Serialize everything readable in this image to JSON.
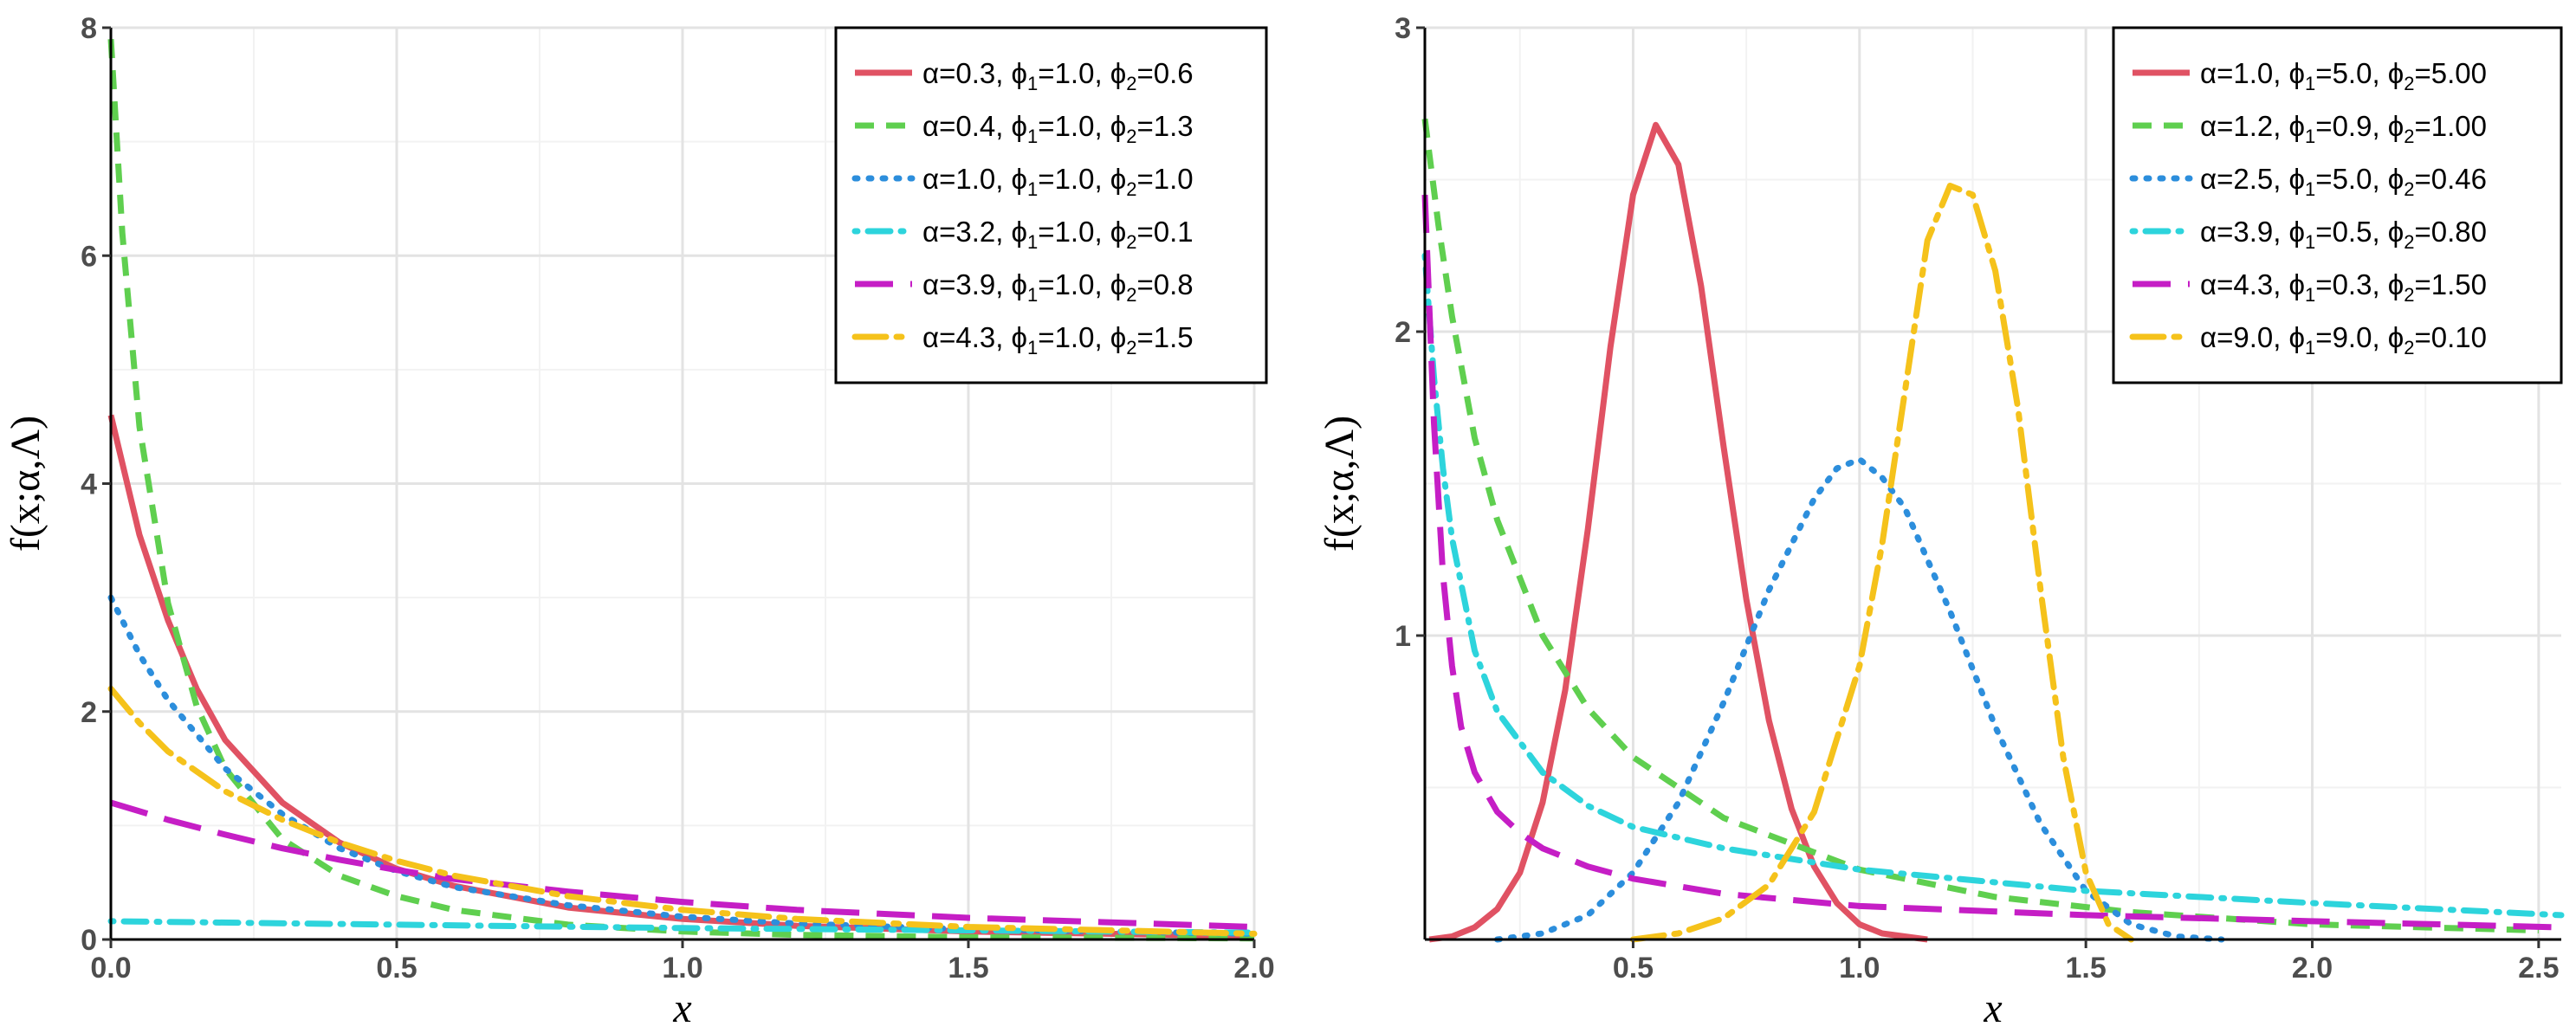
{
  "chart_data": [
    {
      "type": "line",
      "xlabel": "x",
      "ylabel": "f(x;α,Λ)",
      "xlim": [
        0,
        2.0
      ],
      "ylim": [
        0,
        8
      ],
      "xticks": [
        0.0,
        0.5,
        1.0,
        1.5,
        2.0
      ],
      "xtick_labels": [
        "0.0",
        "0.5",
        "1.0",
        "1.5",
        "2.0"
      ],
      "yticks": [
        0,
        2,
        4,
        6,
        8
      ],
      "ytick_labels": [
        "0",
        "2",
        "4",
        "6",
        "8"
      ],
      "grid": true,
      "legend_position": "top-right",
      "series": [
        {
          "name": "α=0.3, ϕ1=1.0, ϕ2=0.6",
          "alpha": "0.3",
          "phi1": "1.0",
          "phi2": "0.6",
          "color": "#E05263",
          "dash": "solid",
          "x": [
            0.0,
            0.05,
            0.1,
            0.15,
            0.2,
            0.3,
            0.4,
            0.5,
            0.6,
            0.8,
            1.0,
            1.2,
            1.5,
            2.0
          ],
          "y": [
            4.6,
            3.55,
            2.8,
            2.2,
            1.75,
            1.2,
            0.85,
            0.62,
            0.47,
            0.28,
            0.18,
            0.12,
            0.07,
            0.03
          ]
        },
        {
          "name": "α=0.4, ϕ1=1.0, ϕ2=1.3",
          "alpha": "0.4",
          "phi1": "1.0",
          "phi2": "1.3",
          "color": "#5FCF4F",
          "dash": "dashed",
          "x": [
            0.0,
            0.02,
            0.05,
            0.1,
            0.15,
            0.2,
            0.3,
            0.4,
            0.5,
            0.6,
            0.8,
            1.0,
            1.2,
            1.5,
            2.0
          ],
          "y": [
            7.9,
            6.2,
            4.5,
            2.95,
            2.05,
            1.5,
            0.88,
            0.56,
            0.38,
            0.26,
            0.13,
            0.07,
            0.04,
            0.02,
            0.01
          ]
        },
        {
          "name": "α=1.0, ϕ1=1.0, ϕ2=1.0",
          "alpha": "1.0",
          "phi1": "1.0",
          "phi2": "1.0",
          "color": "#2C8EDC",
          "dash": "dotted",
          "x": [
            0.0,
            0.05,
            0.1,
            0.2,
            0.3,
            0.4,
            0.5,
            0.6,
            0.8,
            1.0,
            1.2,
            1.5,
            2.0
          ],
          "y": [
            3.0,
            2.5,
            2.1,
            1.5,
            1.1,
            0.8,
            0.6,
            0.46,
            0.3,
            0.2,
            0.14,
            0.09,
            0.05
          ]
        },
        {
          "name": "α=3.2, ϕ1=1.0, ϕ2=0.1",
          "alpha": "3.2",
          "phi1": "1.0",
          "phi2": "0.1",
          "color": "#2DD4DC",
          "dash": "dashdot",
          "x": [
            0.0,
            0.5,
            1.0,
            1.5,
            2.0
          ],
          "y": [
            0.16,
            0.13,
            0.1,
            0.08,
            0.06
          ]
        },
        {
          "name": "α=3.9, ϕ1=1.0, ϕ2=0.8",
          "alpha": "3.9",
          "phi1": "1.0",
          "phi2": "0.8",
          "color": "#C51EC5",
          "dash": "longdash",
          "x": [
            0.0,
            0.1,
            0.2,
            0.3,
            0.4,
            0.5,
            0.6,
            0.8,
            1.0,
            1.2,
            1.5,
            2.0
          ],
          "y": [
            1.2,
            1.05,
            0.92,
            0.8,
            0.7,
            0.61,
            0.53,
            0.42,
            0.33,
            0.26,
            0.19,
            0.11
          ]
        },
        {
          "name": "α=4.3, ϕ1=1.0, ϕ2=1.5",
          "alpha": "4.3",
          "phi1": "1.0",
          "phi2": "1.5",
          "color": "#F5C21B",
          "dash": "twodash",
          "x": [
            0.0,
            0.05,
            0.1,
            0.2,
            0.3,
            0.4,
            0.5,
            0.6,
            0.8,
            1.0,
            1.2,
            1.5,
            2.0
          ],
          "y": [
            2.2,
            1.9,
            1.65,
            1.3,
            1.05,
            0.85,
            0.69,
            0.56,
            0.38,
            0.26,
            0.18,
            0.11,
            0.05
          ]
        }
      ]
    },
    {
      "type": "line",
      "xlabel": "x",
      "ylabel": "f(x;α,Λ)",
      "xlim": [
        0.04,
        2.55
      ],
      "ylim": [
        0,
        3
      ],
      "xticks": [
        0.5,
        1.0,
        1.5,
        2.0,
        2.5
      ],
      "xtick_labels": [
        "0.5",
        "1.0",
        "1.5",
        "2.0",
        "2.5"
      ],
      "yticks": [
        1,
        2,
        3
      ],
      "ytick_labels": [
        "1",
        "2",
        "3"
      ],
      "grid": true,
      "legend_position": "top-right",
      "series": [
        {
          "name": "α=1.0, ϕ1=5.0, ϕ2=5.00",
          "alpha": "1.0",
          "phi1": "5.0",
          "phi2": "5.00",
          "color": "#E05263",
          "dash": "solid",
          "x": [
            0.05,
            0.1,
            0.15,
            0.2,
            0.25,
            0.3,
            0.35,
            0.4,
            0.45,
            0.5,
            0.55,
            0.6,
            0.65,
            0.7,
            0.75,
            0.8,
            0.85,
            0.9,
            0.95,
            1.0,
            1.05,
            1.1,
            1.15
          ],
          "y": [
            0.0,
            0.01,
            0.04,
            0.1,
            0.22,
            0.45,
            0.82,
            1.35,
            1.95,
            2.45,
            2.68,
            2.55,
            2.15,
            1.62,
            1.12,
            0.72,
            0.43,
            0.24,
            0.12,
            0.05,
            0.02,
            0.01,
            0.0
          ]
        },
        {
          "name": "α=1.2, ϕ1=0.9, ϕ2=1.00",
          "alpha": "1.2",
          "phi1": "0.9",
          "phi2": "1.00",
          "color": "#5FCF4F",
          "dash": "dashed",
          "x": [
            0.04,
            0.07,
            0.1,
            0.15,
            0.2,
            0.3,
            0.4,
            0.5,
            0.7,
            1.0,
            1.3,
            1.6,
            2.0,
            2.5
          ],
          "y": [
            2.7,
            2.35,
            2.05,
            1.65,
            1.38,
            1.0,
            0.76,
            0.6,
            0.4,
            0.23,
            0.14,
            0.09,
            0.05,
            0.03
          ]
        },
        {
          "name": "α=2.5, ϕ1=5.0, ϕ2=0.46",
          "alpha": "2.5",
          "phi1": "5.0",
          "phi2": "0.46",
          "color": "#2C8EDC",
          "dash": "dotted",
          "x": [
            0.2,
            0.3,
            0.4,
            0.5,
            0.6,
            0.7,
            0.8,
            0.9,
            0.95,
            1.0,
            1.05,
            1.1,
            1.2,
            1.3,
            1.4,
            1.5,
            1.6,
            1.7,
            1.8
          ],
          "y": [
            0.0,
            0.02,
            0.08,
            0.22,
            0.45,
            0.78,
            1.15,
            1.45,
            1.55,
            1.58,
            1.52,
            1.42,
            1.08,
            0.7,
            0.38,
            0.16,
            0.05,
            0.01,
            0.0
          ]
        },
        {
          "name": "α=3.9, ϕ1=0.5, ϕ2=0.80",
          "alpha": "3.9",
          "phi1": "0.5",
          "phi2": "0.80",
          "color": "#2DD4DC",
          "dash": "dashdot",
          "x": [
            0.04,
            0.06,
            0.08,
            0.1,
            0.15,
            0.2,
            0.3,
            0.4,
            0.5,
            0.7,
            1.0,
            1.5,
            2.0,
            2.55
          ],
          "y": [
            2.25,
            1.85,
            1.55,
            1.32,
            0.95,
            0.75,
            0.55,
            0.44,
            0.37,
            0.3,
            0.23,
            0.16,
            0.12,
            0.08
          ]
        },
        {
          "name": "α=4.3, ϕ1=0.3, ϕ2=1.50",
          "alpha": "4.3",
          "phi1": "0.3",
          "phi2": "1.50",
          "color": "#C51EC5",
          "dash": "longdash",
          "x": [
            0.04,
            0.06,
            0.08,
            0.1,
            0.12,
            0.15,
            0.2,
            0.25,
            0.3,
            0.4,
            0.5,
            0.7,
            1.0,
            1.5,
            2.0,
            2.55
          ],
          "y": [
            2.45,
            1.7,
            1.2,
            0.9,
            0.7,
            0.55,
            0.42,
            0.35,
            0.3,
            0.24,
            0.2,
            0.15,
            0.11,
            0.08,
            0.06,
            0.04
          ]
        },
        {
          "name": "α=9.0, ϕ1=9.0, ϕ2=0.10",
          "alpha": "9.0",
          "phi1": "9.0",
          "phi2": "0.10",
          "color": "#F5C21B",
          "dash": "twodash",
          "x": [
            0.5,
            0.6,
            0.7,
            0.8,
            0.9,
            1.0,
            1.05,
            1.1,
            1.15,
            1.2,
            1.25,
            1.3,
            1.35,
            1.4,
            1.45,
            1.5,
            1.55,
            1.6
          ],
          "y": [
            0.0,
            0.02,
            0.07,
            0.18,
            0.42,
            0.9,
            1.3,
            1.8,
            2.3,
            2.48,
            2.45,
            2.2,
            1.75,
            1.15,
            0.6,
            0.22,
            0.05,
            0.0
          ]
        }
      ]
    }
  ]
}
